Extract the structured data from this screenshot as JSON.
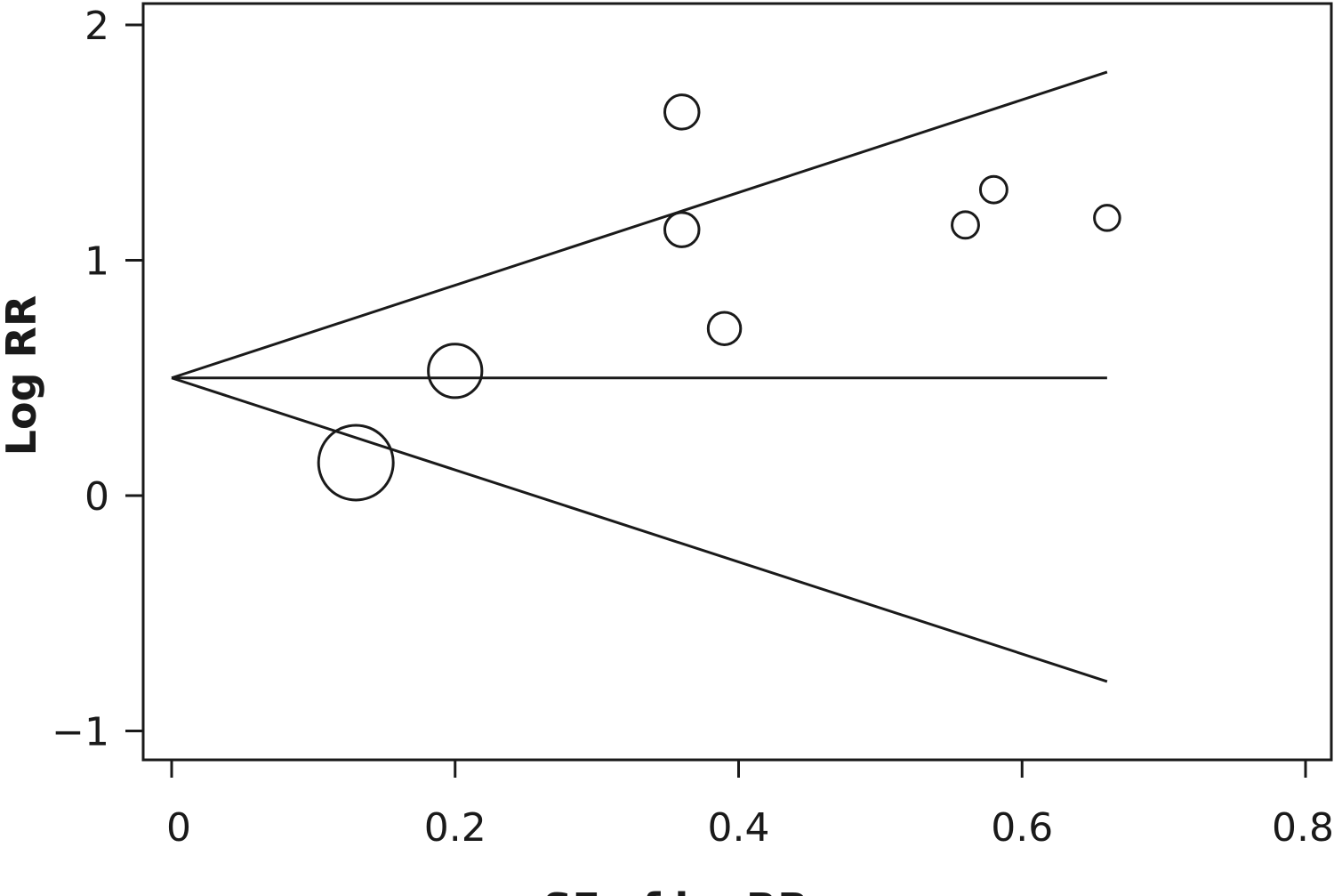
{
  "chart_data": {
    "type": "scatter",
    "title": "",
    "xlabel": "SE of logRR",
    "ylabel": "Log RR",
    "xlim": [
      -0.02,
      0.81
    ],
    "ylim": [
      -1.12,
      2.1
    ],
    "x_ticks": [
      0,
      0.2,
      0.4,
      0.6,
      0.8
    ],
    "x_tick_labels": [
      "0",
      "0.2",
      "0.4",
      "0.6",
      "0.8"
    ],
    "y_ticks": [
      2,
      1,
      0,
      -1
    ],
    "y_tick_labels": [
      "2",
      "1",
      "0",
      "−1"
    ],
    "grid": false,
    "legend": "none",
    "funnel": {
      "pooled_log_rr": 0.5,
      "se_max": 0.66,
      "upper_at_se_max": 1.8,
      "lower_at_se_max": -0.79
    },
    "points": [
      {
        "se": 0.13,
        "log_rr": 0.14,
        "weight": 1.0
      },
      {
        "se": 0.2,
        "log_rr": 0.53,
        "weight": 0.64
      },
      {
        "se": 0.36,
        "log_rr": 1.63,
        "weight": 0.31
      },
      {
        "se": 0.36,
        "log_rr": 1.13,
        "weight": 0.31
      },
      {
        "se": 0.39,
        "log_rr": 0.71,
        "weight": 0.28
      },
      {
        "se": 0.56,
        "log_rr": 1.15,
        "weight": 0.18
      },
      {
        "se": 0.58,
        "log_rr": 1.3,
        "weight": 0.18
      },
      {
        "se": 0.66,
        "log_rr": 1.18,
        "weight": 0.16
      }
    ],
    "marker": "hollow-circle",
    "line_color": "#1a1a1a"
  }
}
